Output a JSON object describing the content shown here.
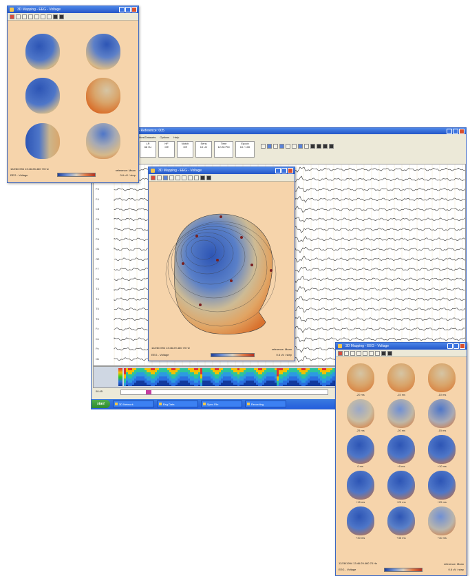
{
  "top_left_window": {
    "title": "3D Mapping - EEG - Voltage",
    "footer_left": "12/28/1994 13:46:28.460 70 Hz",
    "footer_right_1": "reference: Mean",
    "footer_right_2": "0.6 uV / step",
    "mode_label": "EEG - Voltage"
  },
  "main_window": {
    "title": "Analyzer - 1.12/06/1994 - Reference: 005",
    "menu": [
      "File",
      "Edit",
      "View",
      "Controls",
      "Tables/Datasets",
      "Options",
      "Help"
    ],
    "fields": [
      {
        "label": "LR",
        "value": "68 Hz"
      },
      {
        "label": "HF",
        "value": "Off"
      },
      {
        "label": "Notch",
        "value": "Off"
      },
      {
        "label": "Sens",
        "value": "10 uV"
      },
      {
        "label": "Time",
        "value": "12:28 PM"
      },
      {
        "label": "Epoch",
        "value": "10 / 130"
      }
    ],
    "channels": [
      "1",
      "2",
      "3",
      "4",
      "5",
      "6",
      "7",
      "8",
      "9",
      "10",
      "11",
      "12",
      "13",
      "14",
      "15",
      "16",
      "17",
      "18",
      "19",
      "20"
    ],
    "channel_names": [
      "Fp1",
      "Fp2",
      "F3",
      "F4",
      "C3",
      "C4",
      "P3",
      "P4",
      "O1",
      "O2",
      "F7",
      "F8",
      "T3",
      "T4",
      "T5",
      "T6",
      "Fz",
      "Cz",
      "Pz",
      "Oz"
    ],
    "bottom_time": "00:45",
    "taskbar": {
      "start": "start",
      "tasks": [
        "3D Network",
        "Eeg Data",
        "Spec File",
        "Recording"
      ]
    }
  },
  "center_window": {
    "title": "3D Mapping - EEG - Voltage",
    "footer_left": "12/28/1994 13:46:29.460 70 Hz",
    "footer_right_1": "reference: Mean",
    "footer_right_2": "0.6 uV / step",
    "mode_label": "EEG - Voltage"
  },
  "bottom_right_window": {
    "title": "3D Mapping - EEG - Voltage",
    "time_labels": [
      "-20 ms",
      "-15 ms",
      "-10 ms",
      "-25 ms",
      "-20 ms",
      "-15 ms",
      "0 ms",
      "+5 ms",
      "+10 ms",
      "+15 ms",
      "+20 ms",
      "+25 ms",
      "+30 ms",
      "+35 ms",
      "+40 ms"
    ],
    "footer_left": "12/28/1994 13:46:29.460 70 Hz",
    "footer_right_1": "reference: Mean",
    "footer_right_2": "0.6 uV / step",
    "mode_label": "EEG - Voltage"
  },
  "colors": {
    "panel_bg": "#f6d4ab",
    "title_blue": "#2457c8",
    "head_blue": "#2d55b5",
    "head_orange": "#d9722e"
  }
}
